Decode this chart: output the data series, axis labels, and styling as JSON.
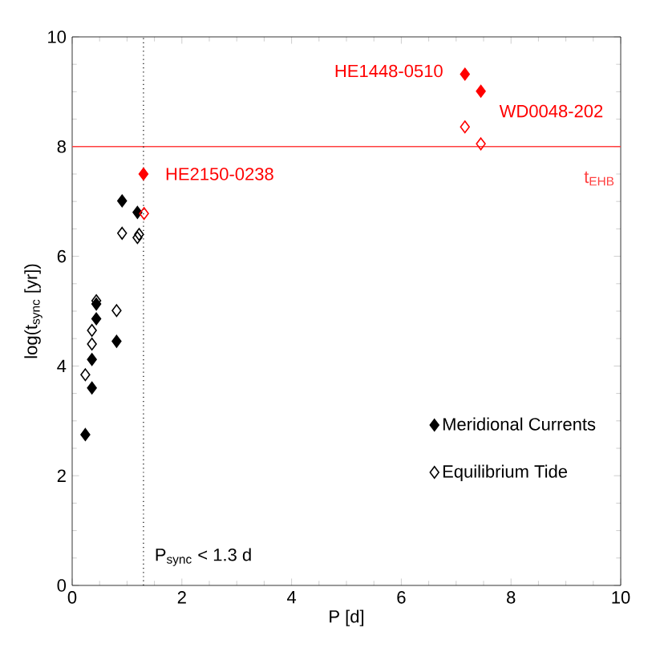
{
  "chart_data": {
    "type": "scatter",
    "xlabel": "P [d]",
    "ylabel": "log(t$_{sync}$ [yr])",
    "xlim": [
      0,
      10
    ],
    "ylim": [
      0,
      10
    ],
    "xticks": [
      0,
      2,
      4,
      6,
      8,
      10
    ],
    "yticks": [
      0,
      2,
      4,
      6,
      8,
      10
    ],
    "legend": "bottom right",
    "marker": "diamond",
    "series": [
      {
        "name": "Meridional Currents",
        "color": "#000000",
        "x": [
          0.24,
          0.36,
          0.36,
          0.44,
          0.44,
          0.81,
          0.91,
          1.19
        ],
        "values": [
          2.75,
          3.6,
          4.12,
          4.86,
          5.13,
          4.45,
          7.01,
          6.8
        ]
      },
      {
        "name": "Equilibrium Tide",
        "color": "#000000",
        "x": [
          0.24,
          0.36,
          0.36,
          0.44,
          0.81,
          0.91,
          1.19,
          1.22
        ],
        "values": [
          3.84,
          4.4,
          4.65,
          5.19,
          5.01,
          6.42,
          6.34,
          6.4
        ]
      },
      {
        "color": "#ff0000",
        "x": [
          1.3,
          7.16,
          7.45
        ],
        "values": [
          7.5,
          9.32,
          9.01
        ]
      },
      {
        "color": "#ff0000",
        "x": [
          1.31,
          7.16,
          7.45
        ],
        "values": [
          6.78,
          8.36,
          8.05
        ]
      }
    ],
    "ref_lines": [
      {
        "axis": "y",
        "value": 8,
        "label": "t$_{EHB}$",
        "color": "#ff4040",
        "line_style": "solid"
      },
      {
        "axis": "x",
        "value": 1.3,
        "label": "P$_{sync}$ < 1.3 d",
        "color": "#000000",
        "line_style": "dotted"
      }
    ],
    "annotations": [
      {
        "text": "HE1448-0510",
        "x": 7.16,
        "y": 9.32
      },
      {
        "text": "WD0048-202",
        "x": 7.45,
        "y": 9.01
      },
      {
        "text": "HE2150-0238",
        "x": 1.3,
        "y": 7.5
      }
    ]
  }
}
